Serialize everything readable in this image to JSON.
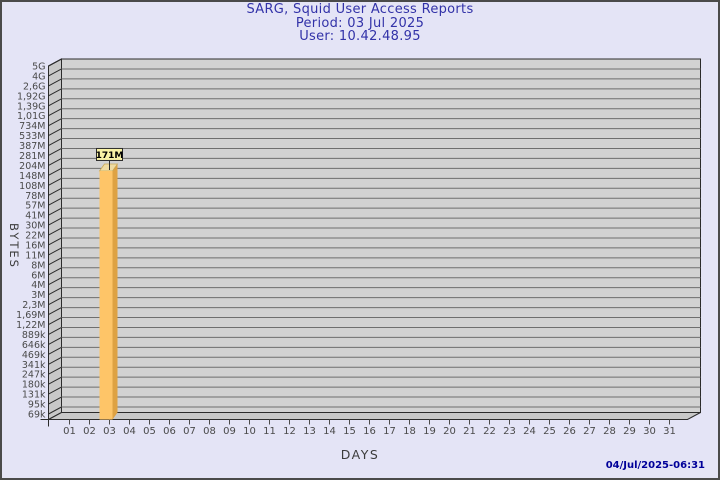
{
  "header": {
    "title": "SARG, Squid User Access Reports",
    "period": "Period: 03 Jul 2025",
    "user": "User: 10.42.48.95"
  },
  "footer": {
    "timestamp": "04/Jul/2025-06:31"
  },
  "chart_data": {
    "type": "bar",
    "title": "SARG, Squid User Access Reports",
    "subtitle": [
      "Period: 03 Jul 2025",
      "User: 10.42.48.95"
    ],
    "xlabel": "DAYS",
    "ylabel": "BYTES",
    "y_scale": "log",
    "ylim": [
      69000,
      5000000000
    ],
    "grid": true,
    "legend": "none",
    "y_tick_labels": [
      "5G",
      "4G",
      "2,6G",
      "1,92G",
      "1,39G",
      "1,01G",
      "734M",
      "533M",
      "387M",
      "281M",
      "204M",
      "148M",
      "108M",
      "78M",
      "57M",
      "41M",
      "30M",
      "22M",
      "16M",
      "11M",
      "8M",
      "6M",
      "4M",
      "3M",
      "2,3M",
      "1,69M",
      "1,22M",
      "889k",
      "646k",
      "469k",
      "341k",
      "247k",
      "180k",
      "131k",
      "95k",
      "69k"
    ],
    "x_tick_labels": [
      "01",
      "02",
      "03",
      "04",
      "05",
      "06",
      "07",
      "08",
      "09",
      "10",
      "11",
      "12",
      "13",
      "14",
      "15",
      "16",
      "17",
      "18",
      "19",
      "20",
      "21",
      "22",
      "23",
      "24",
      "25",
      "26",
      "27",
      "28",
      "29",
      "30",
      "31"
    ],
    "bars": [
      {
        "day": "03",
        "label": "171M",
        "bytes": 171000000
      }
    ],
    "colors": {
      "background": "#E4E4F6",
      "frame_border": "#4a4a4a",
      "wall": "#D2D2D2",
      "side_wall": "#C8C8C8",
      "grid": "#6E6E6E",
      "outline": "#2b2b2b",
      "tick_text": "#4a4a4a",
      "axis_title_text": "#3c3c3c",
      "title_text": "#3232A8",
      "timestamp_text": "#000099",
      "bar_front": "#FEC568",
      "bar_side": "#DEA243",
      "bar_top": "#F0DCA2",
      "bar_top_edge": "#C8A856",
      "value_box_bg": "#F9F3A6"
    }
  }
}
